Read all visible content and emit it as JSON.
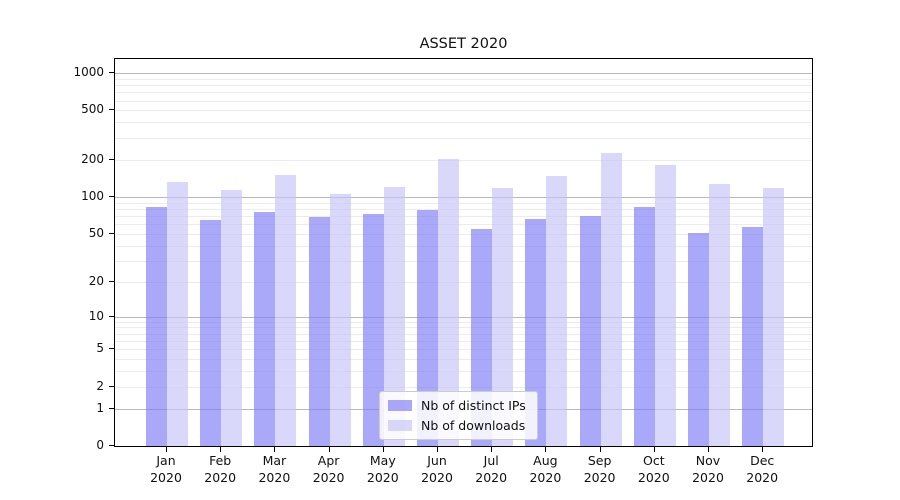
{
  "title": "ASSET 2020",
  "chart_data": {
    "type": "bar",
    "title": "ASSET 2020",
    "categories": [
      "Jan 2020",
      "Feb 2020",
      "Mar 2020",
      "Apr 2020",
      "May 2020",
      "Jun 2020",
      "Jul 2020",
      "Aug 2020",
      "Sep 2020",
      "Oct 2020",
      "Nov 2020",
      "Dec 2020"
    ],
    "series": [
      {
        "name": "Nb of distinct IPs",
        "color": "#7c79f6",
        "alpha": 0.65,
        "values": [
          82,
          65,
          76,
          68,
          73,
          78,
          55,
          66,
          70,
          82,
          51,
          57
        ]
      },
      {
        "name": "Nb of downloads",
        "color": "#c5c2f8",
        "alpha": 0.65,
        "values": [
          131,
          114,
          151,
          106,
          120,
          203,
          118,
          149,
          225,
          181,
          128,
          118
        ]
      }
    ],
    "xlabel": "",
    "ylabel": "",
    "yscale": "symlog-log1p",
    "ylim": [
      0,
      1320
    ],
    "yticks": [
      0,
      1,
      2,
      5,
      10,
      20,
      50,
      100,
      200,
      500,
      1000
    ],
    "grid": {
      "visible": true,
      "major_color": "#b9b9b9",
      "minor_color": "#ececec",
      "major_at": [
        1,
        10,
        100,
        1000
      ],
      "minor_decades": [
        1,
        10,
        100
      ]
    },
    "legend": {
      "position": "bottom-center",
      "entries": [
        "Nb of distinct IPs",
        "Nb of downloads"
      ]
    }
  }
}
